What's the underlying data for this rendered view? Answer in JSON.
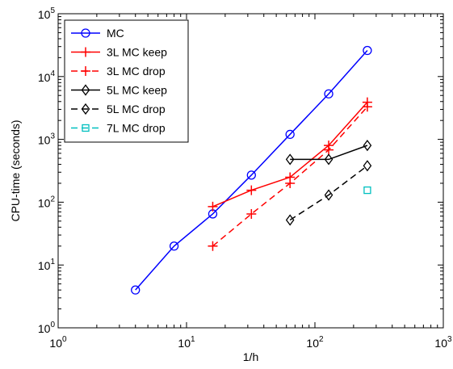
{
  "chart_data": {
    "type": "line",
    "xlabel": "1/h",
    "ylabel": "CPU-time (seconds)",
    "x_scale": "log",
    "y_scale": "log",
    "xlim": [
      1,
      1000
    ],
    "ylim": [
      1,
      100000
    ],
    "grid": false,
    "legend_position": "top-left",
    "x_ticks": [
      {
        "value": 1,
        "base": "10",
        "exp": "0"
      },
      {
        "value": 10,
        "base": "10",
        "exp": "1"
      },
      {
        "value": 100,
        "base": "10",
        "exp": "2"
      },
      {
        "value": 1000,
        "base": "10",
        "exp": "3"
      }
    ],
    "y_ticks": [
      {
        "value": 1,
        "base": "10",
        "exp": "0"
      },
      {
        "value": 10,
        "base": "10",
        "exp": "1"
      },
      {
        "value": 100,
        "base": "10",
        "exp": "2"
      },
      {
        "value": 1000,
        "base": "10",
        "exp": "3"
      },
      {
        "value": 10000,
        "base": "10",
        "exp": "4"
      },
      {
        "value": 100000,
        "base": "10",
        "exp": "5"
      }
    ],
    "series": [
      {
        "name": "MC",
        "color": "#0000ff",
        "line": "solid",
        "marker": "circle",
        "x": [
          4,
          8,
          16,
          32,
          64,
          128,
          256
        ],
        "y": [
          4,
          20,
          65,
          270,
          1200,
          5300,
          26000
        ]
      },
      {
        "name": "3L MC keep",
        "color": "#ff0000",
        "line": "solid",
        "marker": "plus",
        "x": [
          16,
          32,
          64,
          128,
          256
        ],
        "y": [
          85,
          155,
          250,
          800,
          3900
        ]
      },
      {
        "name": "3L MC drop",
        "color": "#ff0000",
        "line": "dashed",
        "marker": "plus",
        "x": [
          16,
          32,
          64,
          128,
          256
        ],
        "y": [
          20,
          65,
          200,
          680,
          3300
        ]
      },
      {
        "name": "5L MC keep",
        "color": "#000000",
        "line": "solid",
        "marker": "diamond",
        "x": [
          64,
          128,
          256
        ],
        "y": [
          480,
          480,
          800
        ]
      },
      {
        "name": "5L MC drop",
        "color": "#000000",
        "line": "dashed",
        "marker": "diamond",
        "x": [
          64,
          128,
          256
        ],
        "y": [
          52,
          130,
          380
        ]
      },
      {
        "name": "7L MC drop",
        "color": "#00bfbf",
        "line": "dashed",
        "marker": "square",
        "x": [
          256
        ],
        "y": [
          155
        ]
      }
    ]
  }
}
